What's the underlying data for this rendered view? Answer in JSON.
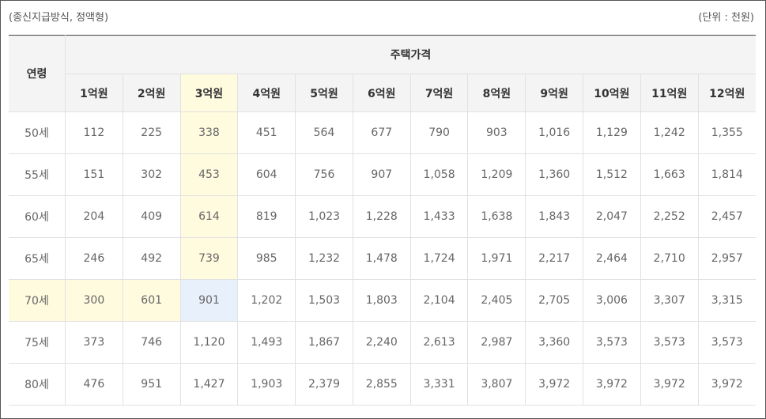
{
  "caption": {
    "left": "(종신지급방식, 정액형)",
    "right": "(단위 : 천원)"
  },
  "table": {
    "age_header": "연령",
    "price_header": "주택가격",
    "price_columns": [
      "1억원",
      "2억원",
      "3억원",
      "4억원",
      "5억원",
      "6억원",
      "7억원",
      "8억원",
      "9억원",
      "10억원",
      "11억원",
      "12억원"
    ],
    "rows": [
      {
        "age": "50세",
        "values": [
          "112",
          "225",
          "338",
          "451",
          "564",
          "677",
          "790",
          "903",
          "1,016",
          "1,129",
          "1,242",
          "1,355"
        ]
      },
      {
        "age": "55세",
        "values": [
          "151",
          "302",
          "453",
          "604",
          "756",
          "907",
          "1,058",
          "1,209",
          "1,360",
          "1,512",
          "1,663",
          "1,814"
        ]
      },
      {
        "age": "60세",
        "values": [
          "204",
          "409",
          "614",
          "819",
          "1,023",
          "1,228",
          "1,433",
          "1,638",
          "1,843",
          "2,047",
          "2,252",
          "2,457"
        ]
      },
      {
        "age": "65세",
        "values": [
          "246",
          "492",
          "739",
          "985",
          "1,232",
          "1,478",
          "1,724",
          "1,971",
          "2,217",
          "2,464",
          "2,710",
          "2,957"
        ]
      },
      {
        "age": "70세",
        "values": [
          "300",
          "601",
          "901",
          "1,202",
          "1,503",
          "1,803",
          "2,104",
          "2,405",
          "2,705",
          "3,006",
          "3,307",
          "3,315"
        ]
      },
      {
        "age": "75세",
        "values": [
          "373",
          "746",
          "1,120",
          "1,493",
          "1,867",
          "2,240",
          "2,613",
          "2,987",
          "3,360",
          "3,573",
          "3,573",
          "3,573"
        ]
      },
      {
        "age": "80세",
        "values": [
          "476",
          "951",
          "1,427",
          "1,903",
          "2,379",
          "2,855",
          "3,331",
          "3,807",
          "3,972",
          "3,972",
          "3,972",
          "3,972"
        ]
      }
    ],
    "highlight": {
      "column_index": 2,
      "row_index": 4,
      "column_color": "#fffbdf",
      "row_color": "#fffbdf",
      "cell_color": "#e8f0fb"
    }
  }
}
